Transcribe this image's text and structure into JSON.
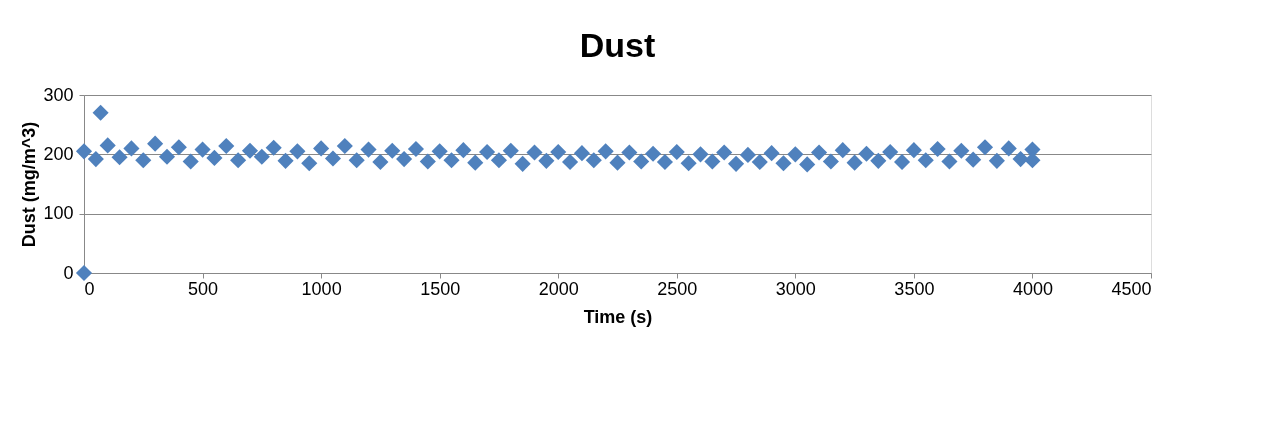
{
  "chart_data": {
    "type": "scatter",
    "title": "Dust",
    "xlabel": "Time (s)",
    "ylabel": "Dust (mg/m^3)",
    "xlim": [
      0,
      4500
    ],
    "xticks": [
      0,
      500,
      1000,
      1500,
      2000,
      2500,
      3000,
      3500,
      4000,
      4500
    ],
    "ylim": [
      0,
      300
    ],
    "yticks": [
      0,
      100,
      200,
      300
    ],
    "grid": "y",
    "legend": false,
    "marker": "diamond",
    "series": [
      {
        "color": "#4f81bd",
        "x": [
          0,
          0,
          50,
          70,
          100,
          150,
          200,
          250,
          300,
          350,
          400,
          450,
          500,
          550,
          600,
          650,
          700,
          750,
          800,
          850,
          900,
          950,
          1000,
          1050,
          1100,
          1150,
          1200,
          1250,
          1300,
          1350,
          1400,
          1450,
          1500,
          1550,
          1600,
          1650,
          1700,
          1750,
          1800,
          1850,
          1900,
          1950,
          2000,
          2050,
          2100,
          2150,
          2200,
          2250,
          2300,
          2350,
          2400,
          2450,
          2500,
          2550,
          2600,
          2650,
          2700,
          2750,
          2800,
          2850,
          2900,
          2950,
          3000,
          3050,
          3100,
          3150,
          3200,
          3250,
          3300,
          3350,
          3400,
          3450,
          3500,
          3550,
          3600,
          3650,
          3700,
          3750,
          3800,
          3850,
          3900,
          3950,
          4000,
          4000
        ],
        "values": [
          0,
          205,
          192,
          270,
          215,
          195,
          210,
          190,
          218,
          196,
          212,
          188,
          208,
          194,
          214,
          190,
          206,
          196,
          211,
          189,
          205,
          185,
          210,
          193,
          214,
          190,
          208,
          187,
          206,
          192,
          209,
          188,
          205,
          190,
          207,
          186,
          204,
          190,
          206,
          184,
          203,
          189,
          204,
          187,
          202,
          190,
          205,
          186,
          203,
          188,
          201,
          187,
          204,
          185,
          200,
          188,
          203,
          184,
          199,
          187,
          202,
          185,
          200,
          183,
          203,
          188,
          207,
          186,
          201,
          189,
          204,
          187,
          207,
          190,
          209,
          188,
          206,
          191,
          212,
          189,
          210,
          192,
          208,
          190
        ]
      }
    ]
  }
}
